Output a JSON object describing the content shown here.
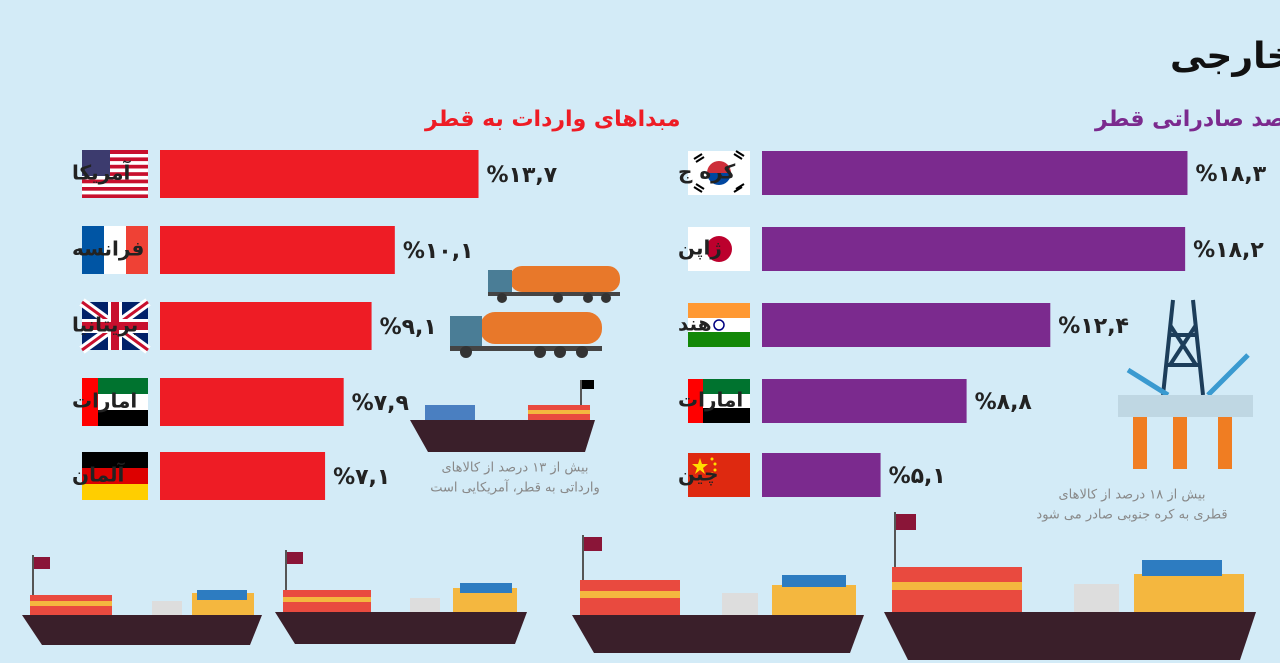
{
  "title": "پنج شریک بزرگ قطر در زمینه تجارت خارجی",
  "chart_data": [
    {
      "type": "bar",
      "orientation": "horizontal",
      "subtitle": "مبداهای واردات به قطر",
      "color": "#ee1c25",
      "categories": [
        "آمریکا",
        "فرانسه",
        "بریتانیا",
        "امارات",
        "آلمان"
      ],
      "values": [
        13.7,
        10.1,
        9.1,
        7.9,
        7.1
      ],
      "value_labels": [
        "%۱۳,۷",
        "%۱۰,۱",
        "%۹,۱",
        "%۷,۹",
        "%۷,۱"
      ],
      "annotation": [
        "بیش از ۱۳ درصد از کالاهای",
        "وارداتی به قطر، آمریکایی است"
      ]
    },
    {
      "type": "bar",
      "orientation": "horizontal",
      "subtitle": "مقاصد صادراتی قطر",
      "color": "#7b2a8e",
      "categories": [
        "کره ج",
        "ژاپن",
        "هند",
        "امارات",
        "چین"
      ],
      "values": [
        18.3,
        18.2,
        12.4,
        8.8,
        5.1
      ],
      "value_labels": [
        "%۱۸,۳",
        "%۱۸,۲",
        "%۱۲,۴",
        "%۸,۸",
        "%۵,۱"
      ],
      "annotation": [
        "بیش از ۱۸ درصد از کالاهای",
        "قطری به کره جنوبی صادر می شود"
      ]
    }
  ]
}
